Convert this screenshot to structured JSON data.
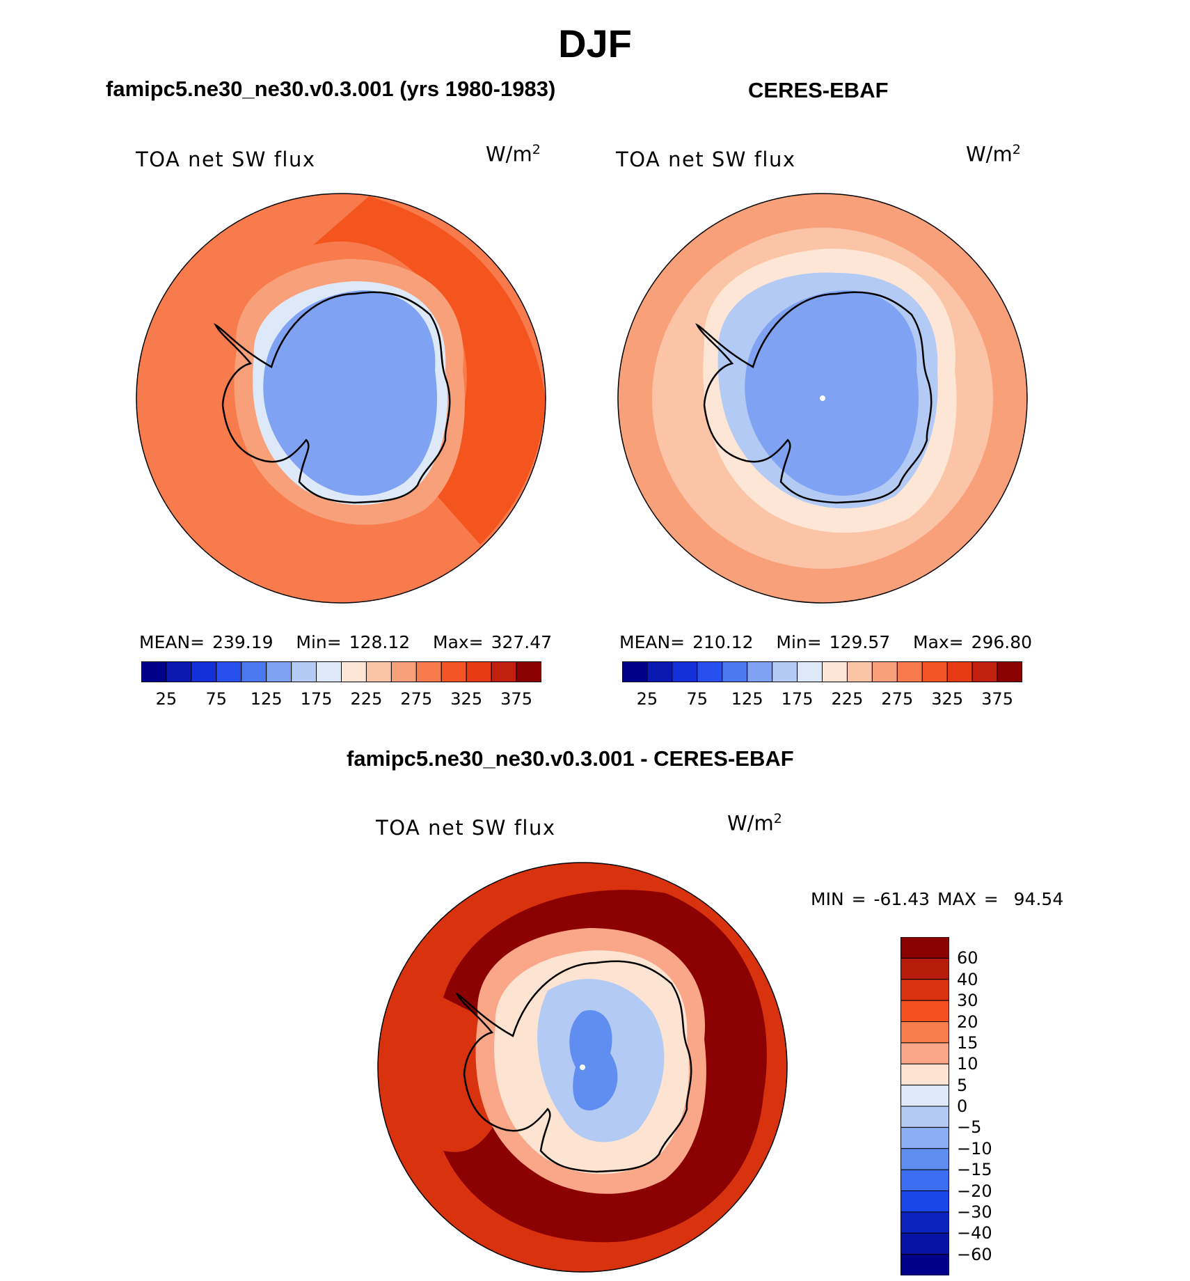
{
  "title": "DJF",
  "panel_left": {
    "subtitle": "famipc5.ne30_ne30.v0.3.001 (yrs 1980-1983)",
    "variable": "TOA net SW flux",
    "unit_base": "W/m",
    "unit_exp": "2",
    "mean_label": "MEAN=",
    "mean": "239.19",
    "min_label": "Min=",
    "min": "128.12",
    "max_label": "Max=",
    "max": "327.47"
  },
  "panel_right": {
    "subtitle": "CERES-EBAF",
    "variable": "TOA net SW flux",
    "unit_base": "W/m",
    "unit_exp": "2",
    "mean_label": "MEAN=",
    "mean": "210.12",
    "min_label": "Min=",
    "min": "129.57",
    "max_label": "Max=",
    "max": "296.80"
  },
  "panel_diff": {
    "subtitle": "famipc5.ne30_ne30.v0.3.001 - CERES-EBAF",
    "variable": "TOA net SW flux",
    "unit_base": "W/m",
    "unit_exp": "2",
    "min_label": "MIN =",
    "min": "-61.43",
    "max_label": "MAX =",
    "max": "94.54"
  },
  "colorbar_abs": {
    "ticks": [
      "25",
      "75",
      "125",
      "175",
      "225",
      "275",
      "325",
      "375"
    ],
    "colors": [
      "#00008b",
      "#0a1ab0",
      "#1430d8",
      "#2850ef",
      "#4a78ee",
      "#7fa3f2",
      "#b3caf5",
      "#dde9f9",
      "#fde6d6",
      "#fbc4a6",
      "#f8a07a",
      "#f77b4d",
      "#f45527",
      "#e63a14",
      "#c0200d",
      "#8b0000"
    ]
  },
  "colorbar_diff": {
    "ticks": [
      "60",
      "40",
      "30",
      "20",
      "15",
      "10",
      "5",
      "0",
      "−5",
      "−10",
      "−15",
      "−20",
      "−30",
      "−40",
      "−60"
    ],
    "colors": [
      "#8b0000",
      "#b51c0a",
      "#d9320f",
      "#f4501f",
      "#f77e4a",
      "#f9a788",
      "#fde3d1",
      "#dde9f9",
      "#b3caf5",
      "#8aaef1",
      "#5f8ef0",
      "#3b6ef0",
      "#1b47e8",
      "#0b24c0",
      "#0613a3",
      "#00008b"
    ]
  },
  "map_colors": {
    "coastline": "#000000",
    "model_outer": "#f77b4d",
    "model_mid": "#f4551f",
    "model_ring": "#f8a07a",
    "model_ice_edge": "#dde9f9",
    "model_ice": "#7fa3f2",
    "obs_outer": "#f8a07a",
    "obs_mid": "#fbc4a6",
    "obs_ring": "#fde6d6",
    "obs_ice_edge": "#b3caf5",
    "obs_ice": "#7fa3f2",
    "diff_outer": "#d9320f",
    "diff_mid": "#8b0000",
    "diff_ring": "#f9a788",
    "diff_edge": "#fde3d1",
    "diff_ice": "#b3caf5",
    "diff_core": "#5f8ef0"
  }
}
